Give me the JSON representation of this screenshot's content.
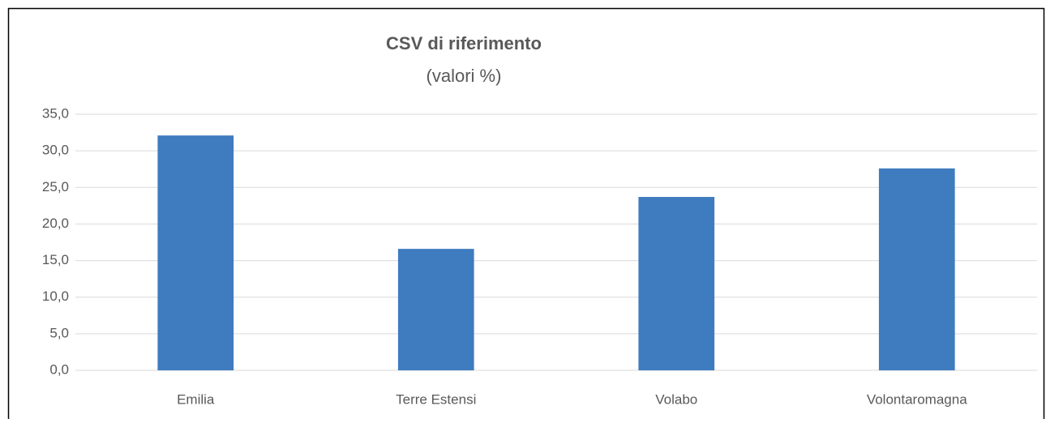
{
  "chart_data": {
    "type": "bar",
    "title": "CSV di riferimento",
    "subtitle": "(valori %)",
    "categories": [
      "Emilia",
      "Terre Estensi",
      "Volabo",
      "Volontaromagna"
    ],
    "values": [
      32.1,
      16.6,
      23.7,
      27.6
    ],
    "color": "#3f7bbf",
    "ylim": [
      0,
      35
    ],
    "yticks": [
      {
        "value": 0,
        "label": "0,0"
      },
      {
        "value": 5,
        "label": "5,0"
      },
      {
        "value": 10,
        "label": "10,0"
      },
      {
        "value": 15,
        "label": "15,0"
      },
      {
        "value": 20,
        "label": "20,0"
      },
      {
        "value": 25,
        "label": "25,0"
      },
      {
        "value": 30,
        "label": "30,0"
      },
      {
        "value": 35,
        "label": "35,0"
      }
    ],
    "grid": true
  }
}
